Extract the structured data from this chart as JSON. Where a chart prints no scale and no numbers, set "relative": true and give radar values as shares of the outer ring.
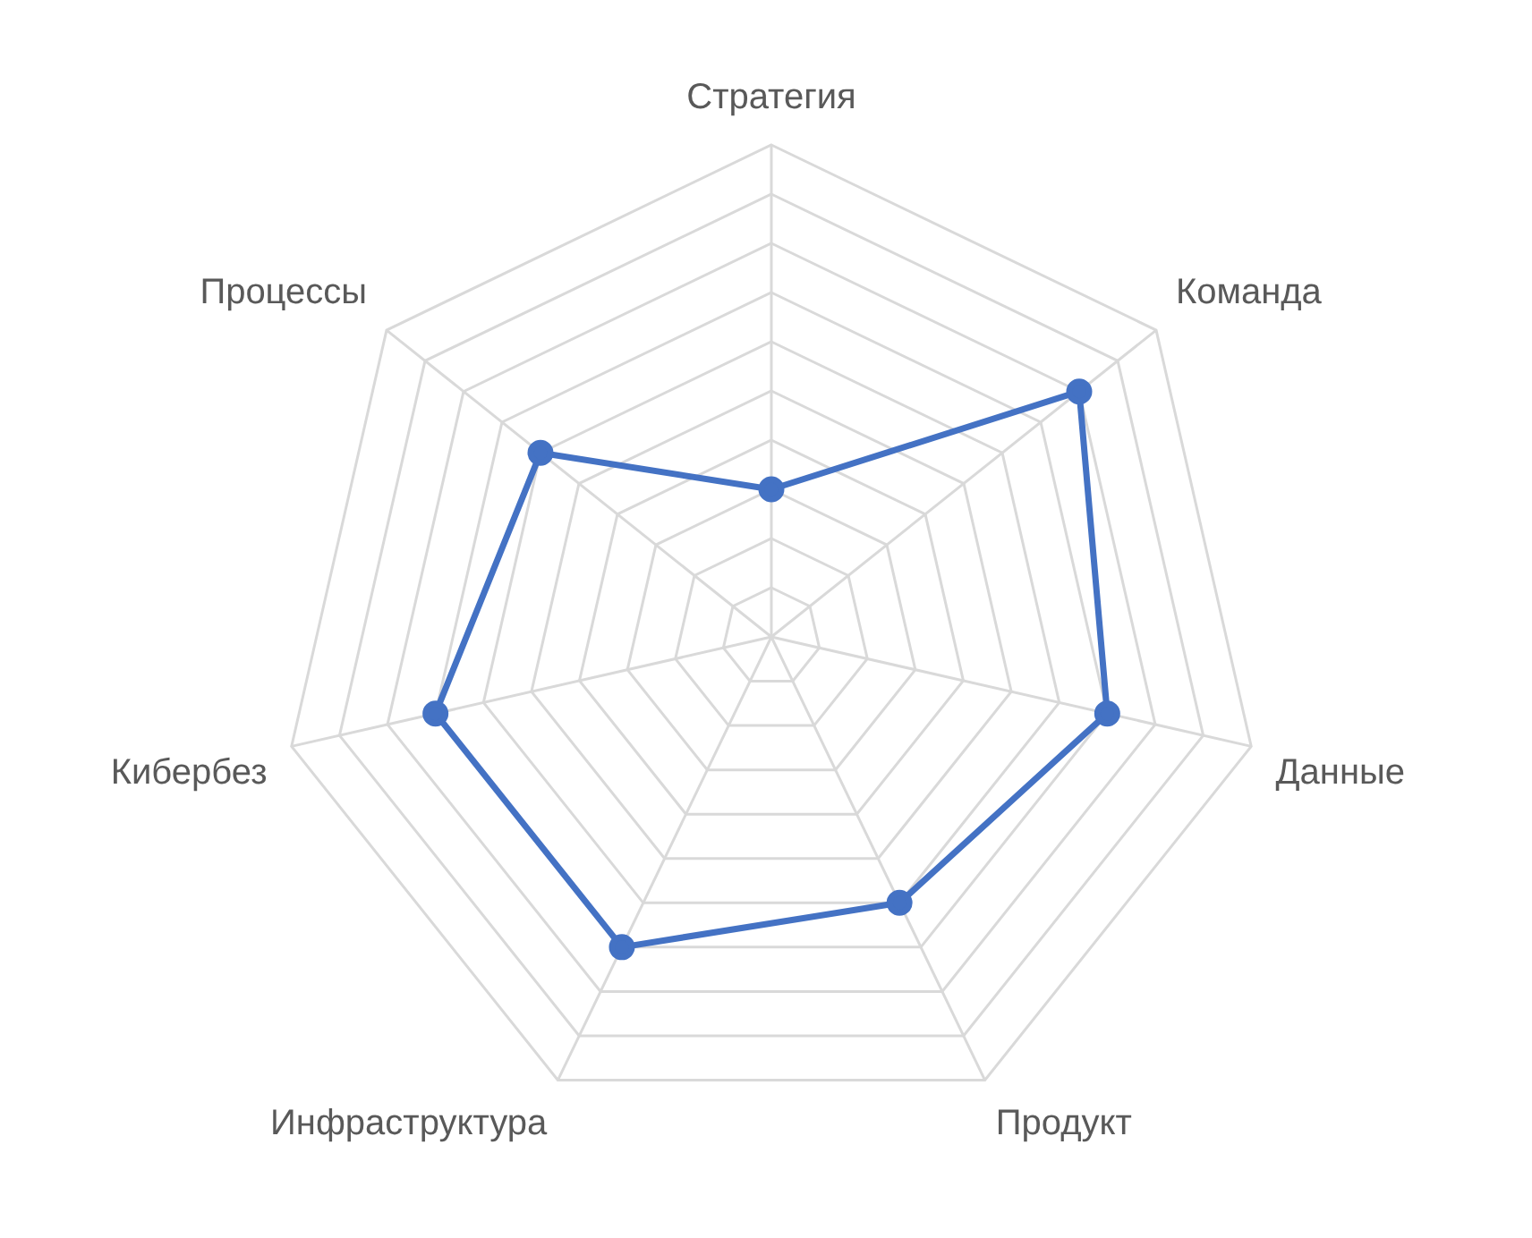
{
  "chart_data": {
    "type": "radar",
    "relative": true,
    "grid": true,
    "marker": "circle",
    "legend": false,
    "categories": [
      "Стратегия",
      "Команда",
      "Данные",
      "Продукт",
      "Инфраструктура",
      "Кибербез",
      "Процессы"
    ],
    "series": [
      {
        "color": "#4472c4",
        "values": [
          0.3,
          0.8,
          0.7,
          0.6,
          0.7,
          0.7,
          0.6
        ]
      }
    ]
  }
}
